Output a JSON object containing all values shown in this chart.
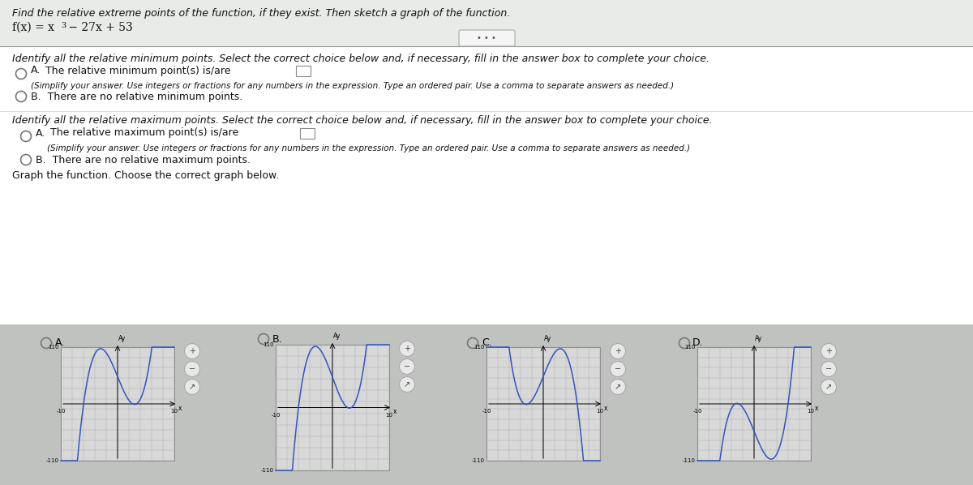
{
  "title_line1": "Find the relative extreme points of the function, if they exist. Then sketch a graph of the function.",
  "func_prefix": "f(x) = x",
  "func_exp": "3",
  "func_suffix": " − 27x + 53",
  "section1": "Identify all the relative minimum points. Select the correct choice below and, if necessary, fill in the answer box to complete your choice.",
  "optA_min_text": "A.  The relative minimum point(s) is/are",
  "optA_note": "(Simplify your answer. Use integers or fractions for any numbers in the expression. Type an ordered pair. Use a comma to separate answers as needed.)",
  "optB_min_text": "B.  There are no relative minimum points.",
  "section2": "Identify all the relative maximum points. Select the correct choice below and, if necessary, fill in the answer box to complete your choice.",
  "optA_max_text": "A.  The relative maximum point(s) is/are",
  "optA_max_note": "(Simplify your answer. Use integers or fractions for any numbers in the expression. Type an ordered pair. Use a comma to separate answers as needed.)",
  "optB_max_text": "B.  There are no relative maximum points.",
  "graph_section": "Graph the function. Choose the correct graph below.",
  "graph_labels": [
    "A.",
    "B.",
    "C.",
    "D."
  ],
  "top_bg": "#c8cfc8",
  "panel_bg": "#dde3dd",
  "white_bg": "#ffffff",
  "bottom_bg": "#c8cac8",
  "graph_bg": "#d8d8d8",
  "curve_color": "#3355bb",
  "grid_color": "#b0b0b0",
  "text_color": "#111111",
  "radio_color": "#555555",
  "sep_color": "#999999"
}
